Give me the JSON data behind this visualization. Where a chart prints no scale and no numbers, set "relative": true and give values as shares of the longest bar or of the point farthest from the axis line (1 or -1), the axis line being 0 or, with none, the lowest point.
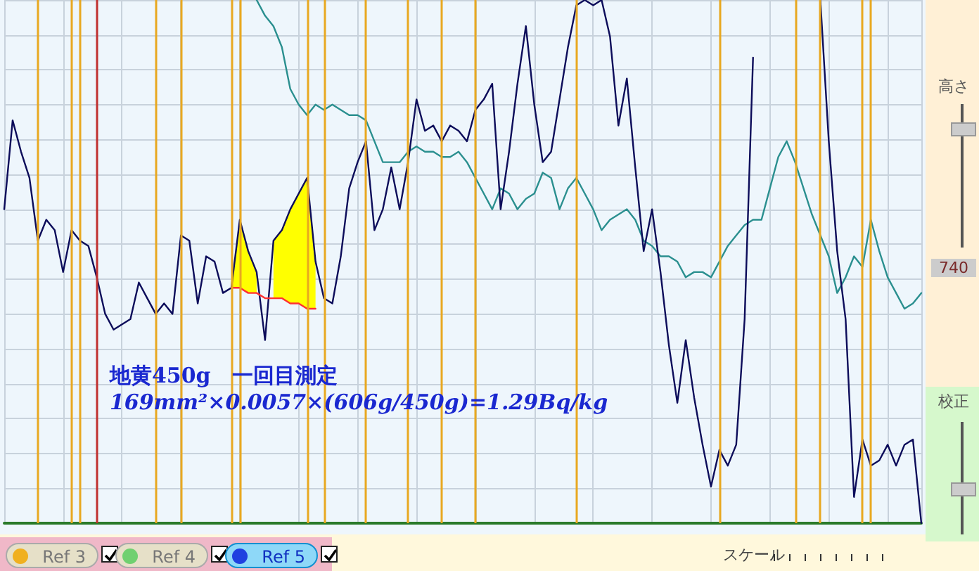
{
  "chart_data": {
    "type": "line",
    "relative": true,
    "grid": true,
    "line_style": "solid",
    "categories": [
      null,
      null,
      null,
      null,
      null,
      null,
      null,
      null,
      null,
      null,
      null,
      null,
      null,
      null,
      null,
      null,
      null,
      null,
      null,
      null,
      null,
      null,
      null,
      null,
      null,
      null,
      null,
      null,
      null,
      null,
      null,
      null,
      null,
      null,
      null,
      null,
      null,
      null,
      null,
      null,
      null,
      null,
      null,
      null,
      null,
      null,
      null,
      null,
      null,
      null,
      null,
      null,
      null,
      null,
      null,
      null,
      null,
      null,
      null,
      null,
      null,
      null,
      null,
      null,
      null,
      null,
      null,
      null,
      null,
      null,
      null,
      null,
      null,
      null,
      null,
      null,
      null,
      null,
      null,
      null,
      null,
      null,
      null,
      null,
      null,
      null,
      null,
      null,
      null,
      null,
      null,
      null,
      null,
      null,
      null,
      null,
      null,
      null,
      null,
      null,
      null,
      null,
      null,
      null,
      null,
      null,
      null,
      null,
      null,
      null
    ],
    "series": [
      {
        "type": "area",
        "color": "#ffff00",
        "values": [
          null,
          null,
          null,
          null,
          null,
          null,
          null,
          null,
          null,
          null,
          null,
          null,
          null,
          null,
          null,
          null,
          null,
          null,
          null,
          null,
          null,
          null,
          null,
          null,
          null,
          null,
          null,
          0.45,
          0.58,
          0.52,
          0.48,
          null,
          0.54,
          0.56,
          0.6,
          0.63,
          0.66,
          0.5,
          null,
          null,
          null,
          null,
          null,
          null,
          null,
          null,
          null,
          null,
          null,
          null,
          null,
          null,
          null,
          null,
          null,
          null,
          null,
          null,
          null,
          null,
          null,
          null,
          null,
          null,
          null,
          null,
          null,
          null,
          null,
          null,
          null,
          null,
          null,
          null,
          null,
          null,
          null,
          null,
          null,
          null,
          null,
          null,
          null,
          null,
          null,
          null,
          null,
          null,
          null,
          null,
          null,
          null,
          null,
          null,
          null,
          null,
          null,
          null,
          null,
          null,
          null,
          null,
          null,
          null,
          null,
          null,
          null,
          null,
          null,
          null
        ]
      },
      {
        "color": "#2a8f8f",
        "values": [
          null,
          null,
          null,
          null,
          null,
          null,
          null,
          null,
          null,
          null,
          null,
          null,
          null,
          null,
          null,
          null,
          null,
          null,
          null,
          null,
          null,
          null,
          null,
          null,
          null,
          null,
          null,
          null,
          null,
          null,
          1,
          0.97,
          0.95,
          0.91,
          0.83,
          0.8,
          0.78,
          0.8,
          0.79,
          0.8,
          0.79,
          0.78,
          0.78,
          0.77,
          0.73,
          0.69,
          0.69,
          0.69,
          0.71,
          0.72,
          0.71,
          0.71,
          0.7,
          0.7,
          0.71,
          0.69,
          0.66,
          0.63,
          0.6,
          0.64,
          0.63,
          0.6,
          0.62,
          0.63,
          0.67,
          0.66,
          0.6,
          0.64,
          0.66,
          0.63,
          0.6,
          0.56,
          0.58,
          0.59,
          0.6,
          0.58,
          0.54,
          0.53,
          0.51,
          0.51,
          0.5,
          0.47,
          0.48,
          0.48,
          0.47,
          0.5,
          0.53,
          0.55,
          0.57,
          0.58,
          0.58,
          0.64,
          0.7,
          0.73,
          0.69,
          0.64,
          0.59,
          0.55,
          0.51,
          0.44,
          0.47,
          0.51,
          0.49,
          0.58,
          0.52,
          0.47,
          0.44,
          0.41,
          0.42,
          0.44
        ]
      },
      {
        "color": "#0c0c5a",
        "values": [
          0.6,
          0.77,
          0.71,
          0.66,
          0.54,
          0.58,
          0.56,
          0.48,
          0.56,
          0.54,
          0.53,
          0.47,
          0.4,
          0.37,
          0.38,
          0.39,
          0.46,
          0.43,
          0.4,
          0.42,
          0.4,
          0.55,
          0.54,
          0.42,
          0.51,
          0.5,
          0.44,
          0.45,
          0.58,
          0.52,
          0.48,
          0.35,
          0.54,
          0.56,
          0.6,
          0.63,
          0.66,
          0.5,
          0.43,
          0.42,
          0.51,
          0.64,
          0.69,
          0.73,
          0.56,
          0.6,
          0.68,
          0.6,
          0.69,
          0.81,
          0.75,
          0.76,
          0.73,
          0.76,
          0.75,
          0.73,
          0.79,
          0.81,
          0.84,
          0.6,
          0.71,
          0.84,
          0.95,
          0.8,
          0.69,
          0.71,
          0.81,
          0.91,
          0.99,
          1,
          0.99,
          1,
          0.93,
          0.76,
          0.85,
          0.68,
          0.52,
          0.6,
          0.48,
          0.34,
          0.23,
          0.35,
          0.24,
          0.15,
          0.07,
          0.14,
          0.11,
          0.15,
          0.39,
          0.89,
          null,
          null,
          null,
          null,
          null,
          null,
          null,
          1,
          0.73,
          0.52,
          0.39,
          0.05,
          0.16,
          0.11,
          0.12,
          0.15,
          0.11,
          0.15,
          0.16,
          0
        ]
      },
      {
        "color": "#ff3030",
        "values": [
          null,
          null,
          null,
          null,
          null,
          null,
          null,
          null,
          null,
          null,
          null,
          null,
          null,
          null,
          null,
          null,
          null,
          null,
          null,
          null,
          null,
          null,
          null,
          null,
          null,
          null,
          null,
          0.45,
          0.45,
          0.44,
          0.44,
          0.43,
          0.43,
          0.43,
          0.42,
          0.42,
          0.41,
          0.41,
          null,
          null,
          null,
          null,
          null,
          null,
          null,
          null,
          null,
          null,
          null,
          null,
          null,
          null,
          null,
          null,
          null,
          null,
          null,
          null,
          null,
          null,
          null,
          null,
          null,
          null,
          null,
          null,
          null,
          null,
          null,
          null,
          null,
          null,
          null,
          null,
          null,
          null,
          null,
          null,
          null,
          null,
          null,
          null,
          null,
          null,
          null,
          null,
          null,
          null,
          null,
          null,
          null,
          null,
          null,
          null,
          null,
          null,
          null,
          null,
          null,
          null,
          null,
          null,
          null,
          null,
          null,
          null,
          null,
          null,
          null,
          null
        ]
      }
    ],
    "annotations": [
      "地黄450g　一回目測定",
      "169mm²×0.0057×(606g/450g)=1.29Bq/kg",
      "Ref 3",
      "Ref 4",
      "Ref 5",
      "スケール",
      "高さ",
      "740",
      "校正"
    ]
  }
}
